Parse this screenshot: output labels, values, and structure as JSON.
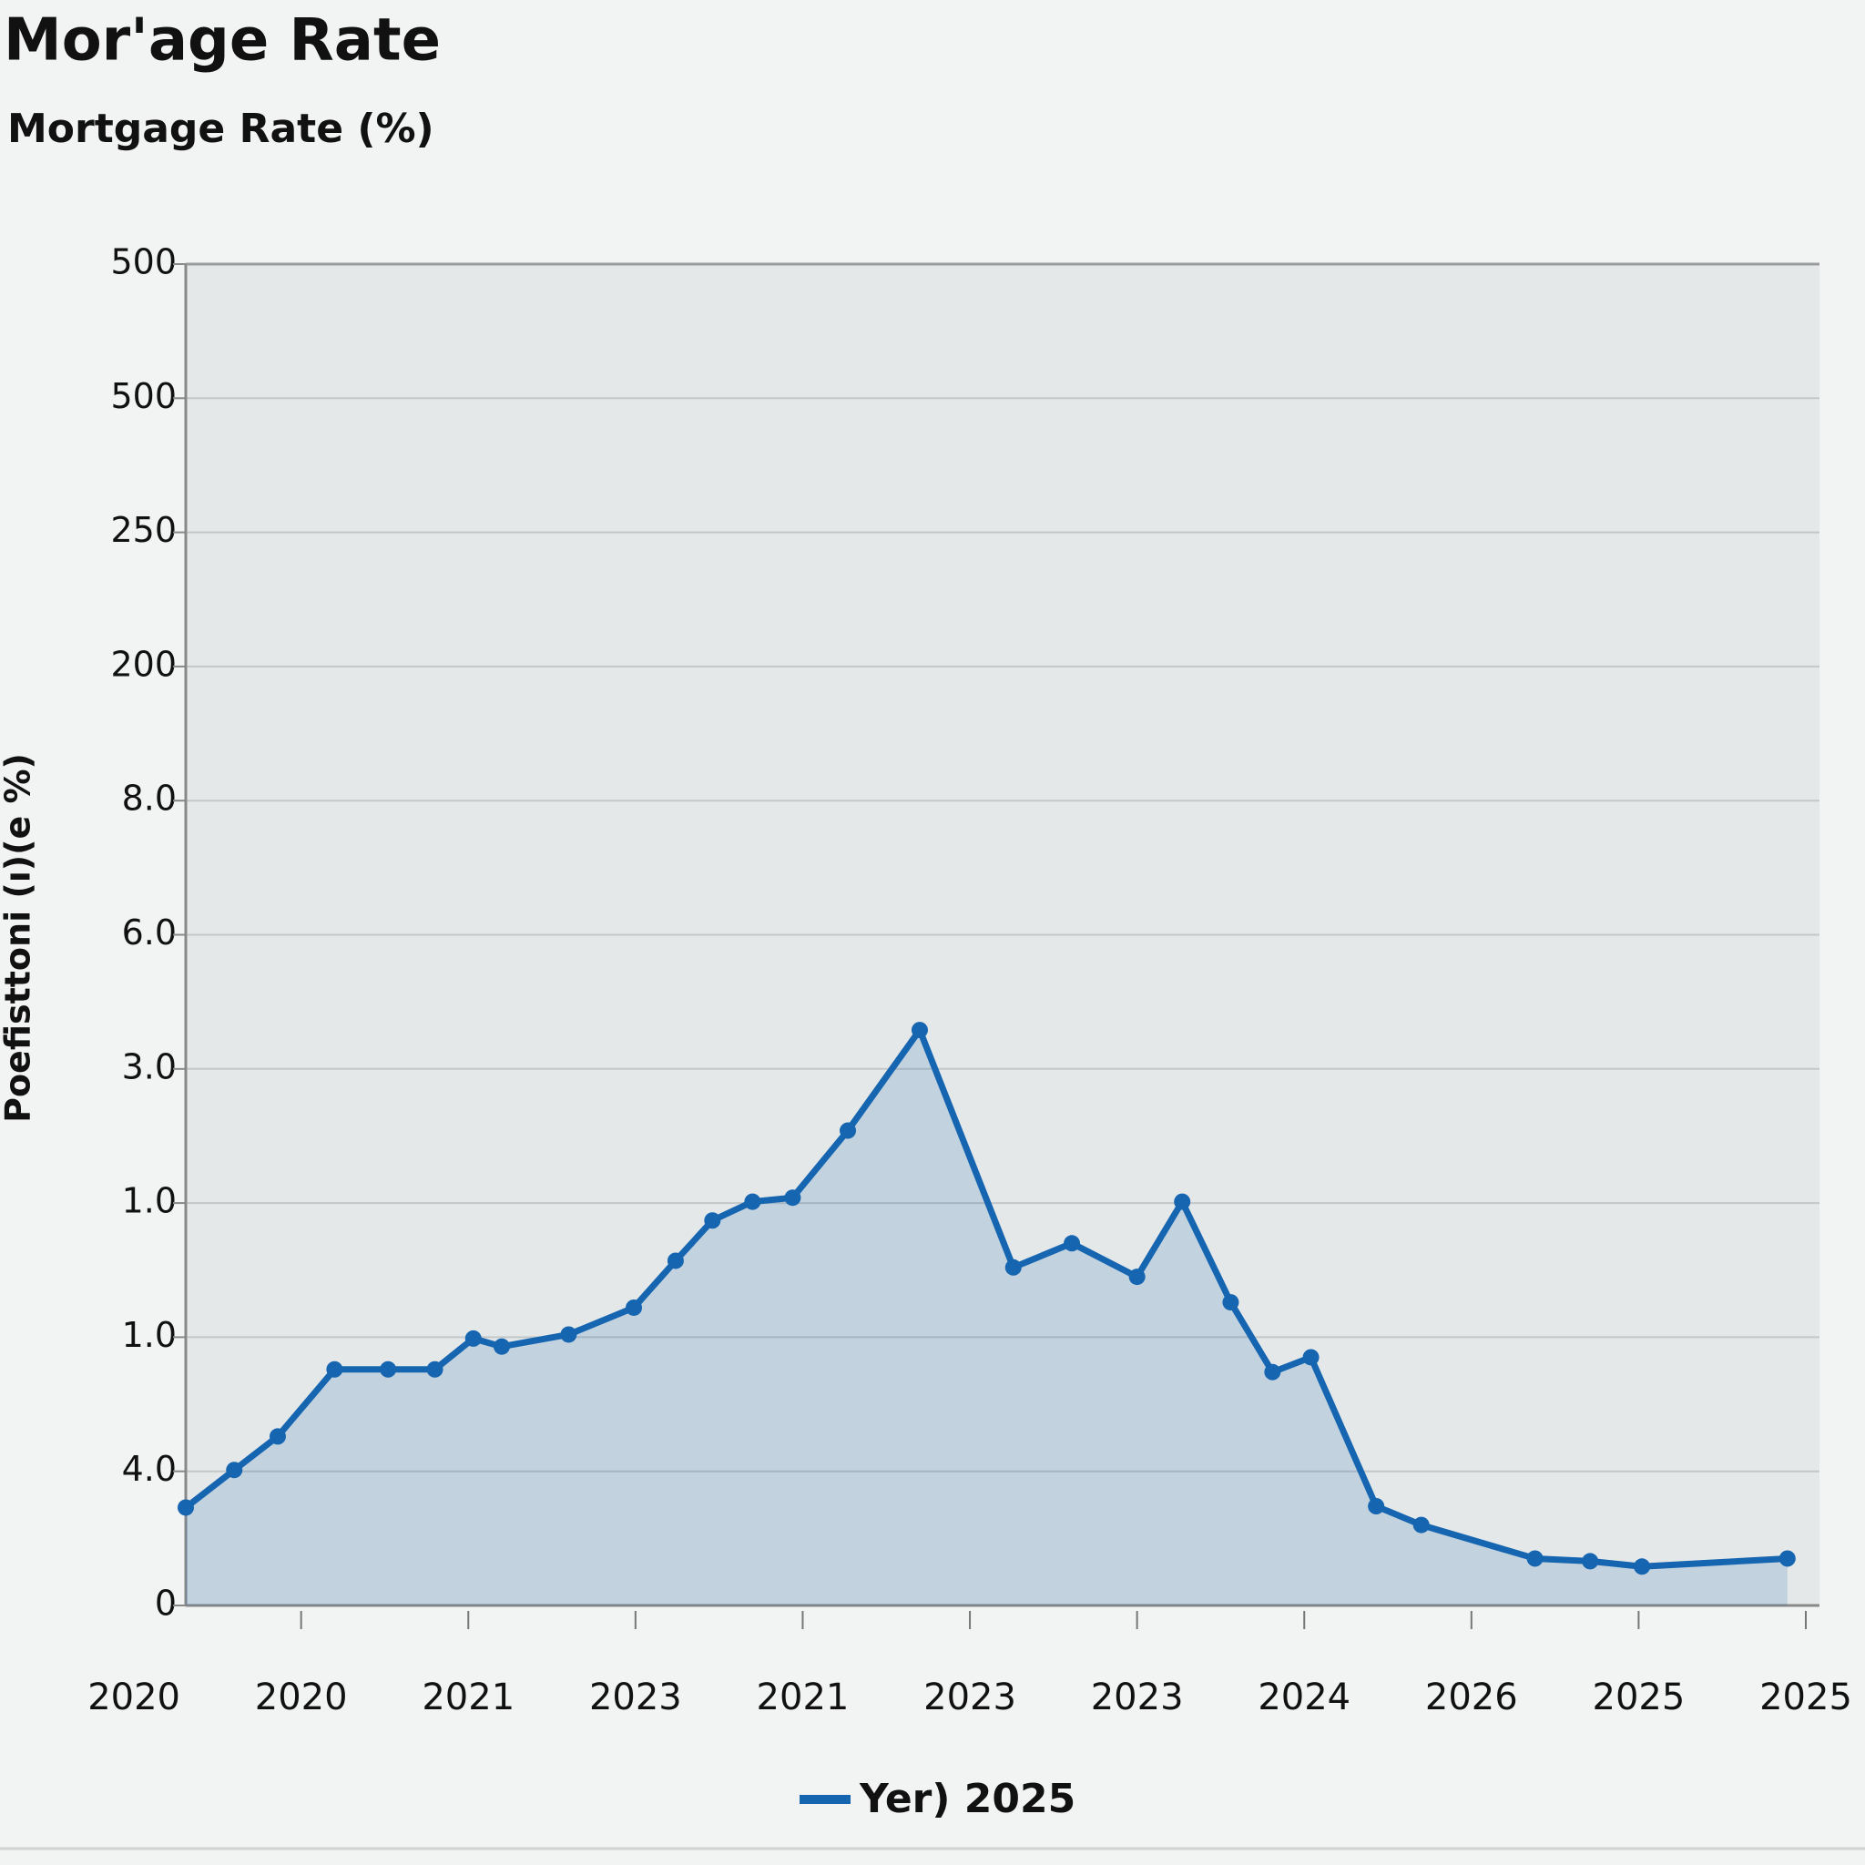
{
  "chart_data": {
    "type": "line",
    "title": "Mor'age Rate",
    "subtitle": "Mortgage Rate (%)",
    "y_label": "Poefisttoni (ı)(e %)",
    "xlim": [
      0.31,
      10
    ],
    "xticks": [
      {
        "value": 0,
        "label": "2020"
      },
      {
        "value": 1,
        "label": "2020"
      },
      {
        "value": 2,
        "label": "2021"
      },
      {
        "value": 3,
        "label": "2023"
      },
      {
        "value": 4,
        "label": "2021"
      },
      {
        "value": 5,
        "label": "2023"
      },
      {
        "value": 6,
        "label": "2023"
      },
      {
        "value": 7,
        "label": "2024"
      },
      {
        "value": 8,
        "label": "2026"
      },
      {
        "value": 9,
        "label": "2025"
      },
      {
        "value": 10,
        "label": "2025"
      }
    ],
    "ylim": [
      0,
      10
    ],
    "yticks": [
      {
        "value": 0,
        "label": "0"
      },
      {
        "value": 1,
        "label": "4.0"
      },
      {
        "value": 2,
        "label": "1.0"
      },
      {
        "value": 3,
        "label": "1.0"
      },
      {
        "value": 4,
        "label": "3.0"
      },
      {
        "value": 5,
        "label": "6.0"
      },
      {
        "value": 6,
        "label": "8.0"
      },
      {
        "value": 7,
        "label": "200"
      },
      {
        "value": 8,
        "label": "250"
      },
      {
        "value": 9,
        "label": "500"
      },
      {
        "value": 10,
        "label": "500"
      }
    ],
    "grid": true,
    "area": true,
    "x": [
      0.31,
      0.6,
      0.86,
      1.2,
      1.52,
      1.8,
      2.03,
      2.2,
      2.6,
      2.99,
      3.24,
      3.46,
      3.7,
      3.94,
      4.27,
      4.7,
      5.26,
      5.61,
      6.0,
      6.27,
      6.56,
      6.81,
      7.04,
      7.43,
      7.7,
      8.38,
      8.71,
      9.02,
      9.89
    ],
    "series": [
      {
        "name": "Yer) 2025",
        "color": "#1565b0",
        "values": [
          0.73,
          1.01,
          1.26,
          1.76,
          1.76,
          1.76,
          1.99,
          1.93,
          2.02,
          2.22,
          2.57,
          2.87,
          3.01,
          3.04,
          3.54,
          4.29,
          2.52,
          2.7,
          2.45,
          3.01,
          2.26,
          1.74,
          1.85,
          0.74,
          0.6,
          0.35,
          0.33,
          0.29,
          0.35
        ]
      }
    ]
  }
}
